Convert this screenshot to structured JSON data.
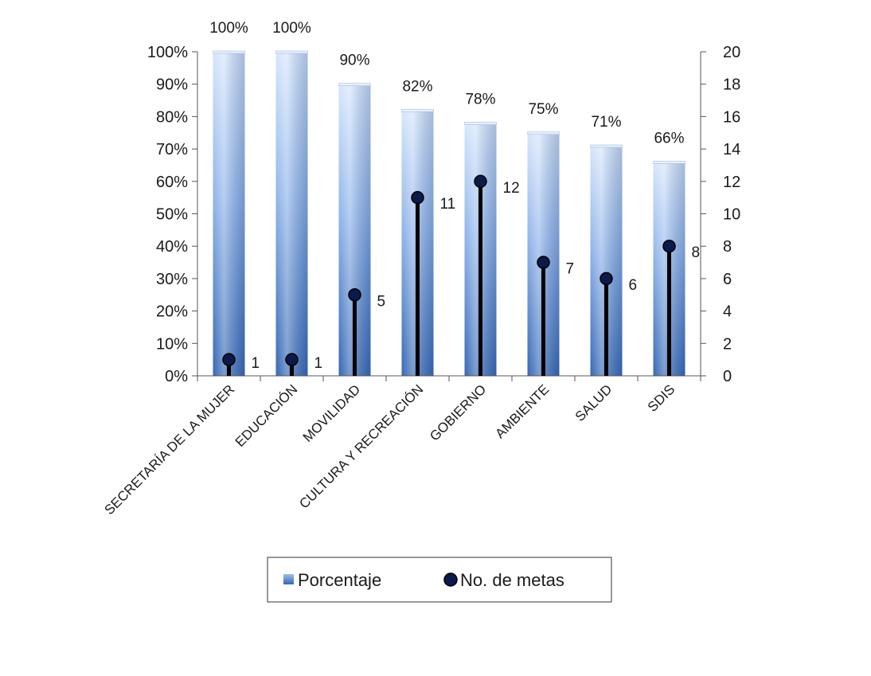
{
  "chart_data": {
    "type": "bar",
    "categories": [
      "SECRETARÍA DE LA MUJER",
      "EDUCACIÓN",
      "MOVILIDAD",
      "CULTURA Y RECREACIÓN",
      "GOBIERNO",
      "AMBIENTE",
      "SALUD",
      "SDIS"
    ],
    "series": [
      {
        "name": "Porcentaje",
        "type": "bar",
        "axis": "left",
        "values": [
          100,
          100,
          90,
          82,
          78,
          75,
          71,
          66
        ],
        "labels": [
          "100%",
          "100%",
          "90%",
          "82%",
          "78%",
          "75%",
          "71%",
          "66%"
        ]
      },
      {
        "name": "No. de metas",
        "type": "lollipop",
        "axis": "right",
        "values": [
          1,
          1,
          5,
          11,
          12,
          7,
          6,
          8
        ],
        "labels": [
          "1",
          "1",
          "5",
          "11",
          "12",
          "7",
          "6",
          "8"
        ]
      }
    ],
    "y_left": {
      "ylim": [
        0,
        100
      ],
      "ticks": [
        "0%",
        "10%",
        "20%",
        "30%",
        "40%",
        "50%",
        "60%",
        "70%",
        "80%",
        "90%",
        "100%"
      ]
    },
    "y_right": {
      "ylim": [
        0,
        20
      ],
      "ticks": [
        "0",
        "2",
        "4",
        "6",
        "8",
        "10",
        "12",
        "14",
        "16",
        "18",
        "20"
      ]
    },
    "grid": false,
    "legend": "bottom-center",
    "colors": {
      "bar_light": "#d6e6fb",
      "bar_mid": "#8fb4ea",
      "bar_dark": "#3567b4",
      "marker": "#0a1a4a",
      "stem": "#000000"
    }
  }
}
